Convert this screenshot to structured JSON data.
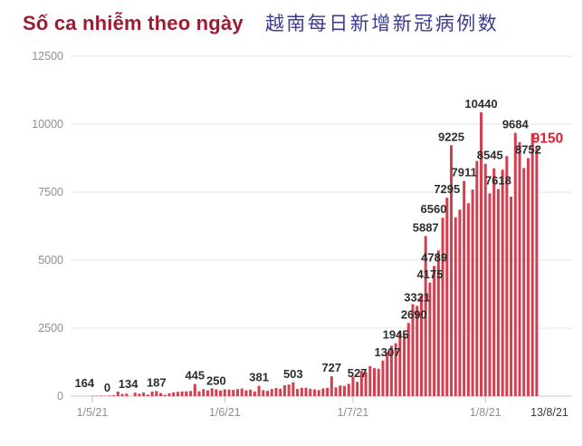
{
  "title": {
    "vi": "Số ca nhiễm theo ngày",
    "zh": "越南每日新增新冠病例数"
  },
  "colors": {
    "bar": "#d23f4f",
    "title_vi": "#9c1c31",
    "title_zh": "#3c3c8c",
    "data_label": "#2d2d2d",
    "highlight_label": "#e01f2d",
    "axis_text": "#8f8f8f",
    "axis_text_emphasis": "#3a3a3a",
    "gridline": "#e4e4e4",
    "baseline": "#c9c9c9",
    "tick": "#c0c0c0",
    "background": "#ffffff"
  },
  "chart_data": {
    "type": "bar",
    "title": "Số ca nhiễm theo ngày / 越南每日新增新冠病例数",
    "xlabel": "",
    "ylabel": "",
    "ylim": [
      0,
      12500
    ],
    "yticks": [
      0,
      2500,
      5000,
      7500,
      10000,
      12500
    ],
    "xticks": [
      {
        "label": "1/5/21",
        "index": 0,
        "emphasis": false
      },
      {
        "label": "1/6/21",
        "index": 31,
        "emphasis": false
      },
      {
        "label": "1/7/21",
        "index": 61,
        "emphasis": false
      },
      {
        "label": "1/8/21",
        "index": 92,
        "emphasis": false
      },
      {
        "label": "13/8/21",
        "index": 104,
        "emphasis": true
      }
    ],
    "grid": "horizontal",
    "legend": "none",
    "point_format": "[date d/m, value, flag: 0=no label, 1=data label, 2=red highlighted label]",
    "series": [
      {
        "name": "Số ca nhiễm",
        "points": [
          [
            "1/5",
            10,
            0
          ],
          [
            "2/5",
            14,
            0
          ],
          [
            "3/5",
            19,
            0
          ],
          [
            "4/5",
            11,
            0
          ],
          [
            "5/5",
            26,
            0
          ],
          [
            "6/5",
            30,
            0
          ],
          [
            "7/5",
            164,
            1
          ],
          [
            "8/5",
            78,
            0
          ],
          [
            "9/5",
            92,
            0
          ],
          [
            "10/5",
            0,
            1
          ],
          [
            "11/5",
            125,
            0
          ],
          [
            "12/5",
            89,
            0
          ],
          [
            "13/5",
            134,
            1
          ],
          [
            "14/5",
            59,
            0
          ],
          [
            "15/5",
            169,
            0
          ],
          [
            "16/5",
            187,
            1
          ],
          [
            "17/5",
            116,
            0
          ],
          [
            "18/5",
            48,
            0
          ],
          [
            "19/5",
            109,
            0
          ],
          [
            "20/5",
            144,
            0
          ],
          [
            "21/5",
            157,
            0
          ],
          [
            "22/5",
            173,
            0
          ],
          [
            "23/5",
            176,
            0
          ],
          [
            "24/5",
            189,
            0
          ],
          [
            "25/5",
            445,
            1
          ],
          [
            "26/5",
            180,
            0
          ],
          [
            "27/5",
            254,
            0
          ],
          [
            "28/5",
            213,
            0
          ],
          [
            "29/5",
            287,
            0
          ],
          [
            "30/5",
            250,
            1
          ],
          [
            "31/5",
            211,
            0
          ],
          [
            "1/6",
            251,
            0
          ],
          [
            "2/6",
            241,
            0
          ],
          [
            "3/6",
            230,
            0
          ],
          [
            "4/6",
            257,
            0
          ],
          [
            "5/6",
            281,
            0
          ],
          [
            "6/6",
            216,
            0
          ],
          [
            "7/6",
            236,
            0
          ],
          [
            "8/6",
            175,
            0
          ],
          [
            "9/6",
            381,
            1
          ],
          [
            "10/6",
            219,
            0
          ],
          [
            "11/6",
            196,
            0
          ],
          [
            "12/6",
            261,
            0
          ],
          [
            "13/6",
            297,
            0
          ],
          [
            "14/6",
            272,
            0
          ],
          [
            "15/6",
            402,
            0
          ],
          [
            "16/6",
            423,
            0
          ],
          [
            "17/6",
            503,
            1
          ],
          [
            "18/6",
            264,
            0
          ],
          [
            "19/6",
            308,
            0
          ],
          [
            "20/6",
            311,
            0
          ],
          [
            "21/6",
            272,
            0
          ],
          [
            "22/6",
            248,
            0
          ],
          [
            "23/6",
            220,
            0
          ],
          [
            "24/6",
            285,
            0
          ],
          [
            "25/6",
            305,
            0
          ],
          [
            "26/6",
            727,
            1
          ],
          [
            "27/6",
            323,
            0
          ],
          [
            "28/6",
            391,
            0
          ],
          [
            "29/6",
            372,
            0
          ],
          [
            "30/6",
            450,
            0
          ],
          [
            "1/7",
            713,
            0
          ],
          [
            "2/7",
            527,
            1
          ],
          [
            "3/7",
            922,
            0
          ],
          [
            "4/7",
            887,
            0
          ],
          [
            "5/7",
            1102,
            0
          ],
          [
            "6/7",
            1029,
            0
          ],
          [
            "7/7",
            1007,
            0
          ],
          [
            "8/7",
            1307,
            1
          ],
          [
            "9/7",
            1625,
            0
          ],
          [
            "10/7",
            1853,
            0
          ],
          [
            "11/7",
            1945,
            1
          ],
          [
            "12/7",
            2383,
            0
          ],
          [
            "13/7",
            2296,
            0
          ],
          [
            "14/7",
            2690,
            1
          ],
          [
            "15/7",
            3379,
            0
          ],
          [
            "16/7",
            3321,
            1
          ],
          [
            "17/7",
            3705,
            0
          ],
          [
            "18/7",
            5887,
            1
          ],
          [
            "19/7",
            4175,
            1
          ],
          [
            "20/7",
            4789,
            1
          ],
          [
            "21/7",
            5357,
            0
          ],
          [
            "22/7",
            6560,
            1
          ],
          [
            "23/7",
            7295,
            1
          ],
          [
            "24/7",
            9225,
            1
          ],
          [
            "25/7",
            6578,
            0
          ],
          [
            "26/7",
            6859,
            0
          ],
          [
            "27/7",
            7911,
            1
          ],
          [
            "28/7",
            7094,
            0
          ],
          [
            "29/7",
            7594,
            0
          ],
          [
            "30/7",
            8649,
            0
          ],
          [
            "31/7",
            10440,
            1
          ],
          [
            "1/8",
            8545,
            1
          ],
          [
            "2/8",
            7455,
            0
          ],
          [
            "3/8",
            8377,
            0
          ],
          [
            "4/8",
            7618,
            1
          ],
          [
            "5/8",
            8324,
            0
          ],
          [
            "6/8",
            8826,
            0
          ],
          [
            "7/8",
            7334,
            0
          ],
          [
            "8/8",
            9684,
            1
          ],
          [
            "9/8",
            9340,
            0
          ],
          [
            "10/8",
            8390,
            0
          ],
          [
            "11/8",
            8752,
            1
          ],
          [
            "12/8",
            9667,
            0
          ],
          [
            "13/8",
            9150,
            2
          ]
        ]
      }
    ]
  }
}
